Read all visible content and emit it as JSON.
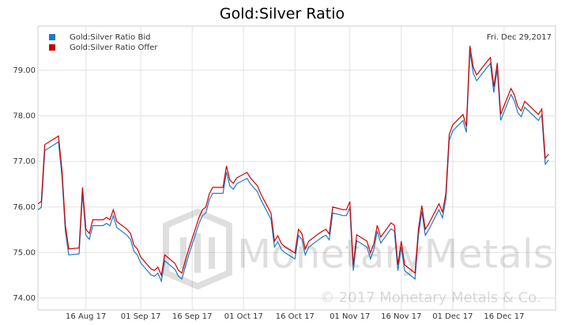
{
  "chart_data": {
    "type": "line",
    "title": "Gold:Silver Ratio",
    "annotation": "Fri. Dec 29,2017",
    "watermark": "MonetaryMetals",
    "copyright": "© 2017 Monetary Metals & Co.",
    "legend": "top-left",
    "grid": true,
    "x": [
      "2017-08-02",
      "2017-08-03",
      "2017-08-04",
      "2017-08-07",
      "2017-08-08",
      "2017-08-09",
      "2017-08-10",
      "2017-08-11",
      "2017-08-14",
      "2017-08-15",
      "2017-08-16",
      "2017-08-17",
      "2017-08-18",
      "2017-08-21",
      "2017-08-22",
      "2017-08-23",
      "2017-08-24",
      "2017-08-25",
      "2017-08-28",
      "2017-08-29",
      "2017-08-30",
      "2017-08-31",
      "2017-09-01",
      "2017-09-04",
      "2017-09-05",
      "2017-09-06",
      "2017-09-07",
      "2017-09-08",
      "2017-09-11",
      "2017-09-12",
      "2017-09-13",
      "2017-09-14",
      "2017-09-15",
      "2017-09-18",
      "2017-09-19",
      "2017-09-20",
      "2017-09-21",
      "2017-09-22",
      "2017-09-25",
      "2017-09-26",
      "2017-09-27",
      "2017-09-28",
      "2017-09-29",
      "2017-10-02",
      "2017-10-03",
      "2017-10-04",
      "2017-10-05",
      "2017-10-06",
      "2017-10-09",
      "2017-10-10",
      "2017-10-11",
      "2017-10-12",
      "2017-10-13",
      "2017-10-16",
      "2017-10-17",
      "2017-10-18",
      "2017-10-19",
      "2017-10-20",
      "2017-10-23",
      "2017-10-24",
      "2017-10-25",
      "2017-10-26",
      "2017-10-27",
      "2017-10-30",
      "2017-10-31",
      "2017-11-01",
      "2017-11-02",
      "2017-11-03",
      "2017-11-06",
      "2017-11-07",
      "2017-11-08",
      "2017-11-09",
      "2017-11-10",
      "2017-11-13",
      "2017-11-14",
      "2017-11-15",
      "2017-11-16",
      "2017-11-17",
      "2017-11-20",
      "2017-11-21",
      "2017-11-22",
      "2017-11-23",
      "2017-11-24",
      "2017-11-27",
      "2017-11-28",
      "2017-11-29",
      "2017-11-30",
      "2017-12-01",
      "2017-12-04",
      "2017-12-05",
      "2017-12-06",
      "2017-12-07",
      "2017-12-08",
      "2017-12-11",
      "2017-12-12",
      "2017-12-13",
      "2017-12-14",
      "2017-12-15",
      "2017-12-18",
      "2017-12-19",
      "2017-12-20",
      "2017-12-21",
      "2017-12-22",
      "2017-12-26",
      "2017-12-27",
      "2017-12-28",
      "2017-12-29"
    ],
    "series": [
      {
        "name": "Gold:Silver Ratio Bid",
        "color": "#1f78c8",
        "values": [
          75.94,
          75.99,
          77.24,
          77.38,
          77.43,
          76.68,
          75.47,
          74.95,
          74.97,
          76.3,
          75.38,
          75.29,
          75.59,
          75.59,
          75.64,
          75.59,
          75.81,
          75.55,
          75.38,
          75.29,
          75.03,
          74.95,
          74.77,
          74.51,
          74.48,
          74.55,
          74.37,
          74.82,
          74.63,
          74.48,
          74.42,
          74.69,
          74.95,
          75.64,
          75.81,
          75.87,
          76.16,
          76.3,
          76.3,
          76.77,
          76.46,
          76.39,
          76.51,
          76.63,
          76.51,
          76.42,
          76.34,
          76.16,
          75.73,
          75.12,
          75.24,
          75.07,
          75.0,
          74.86,
          75.38,
          75.29,
          74.95,
          75.12,
          75.29,
          75.34,
          75.38,
          75.28,
          75.87,
          75.81,
          75.81,
          75.99,
          74.6,
          75.26,
          75.12,
          74.86,
          75.07,
          75.47,
          75.21,
          75.52,
          75.47,
          74.6,
          75.12,
          74.6,
          74.42,
          75.38,
          75.9,
          75.38,
          75.5,
          75.94,
          75.76,
          76.16,
          77.46,
          77.67,
          77.9,
          77.64,
          79.41,
          78.94,
          78.77,
          79.06,
          79.15,
          78.51,
          79.03,
          77.9,
          78.47,
          78.33,
          78.07,
          77.98,
          78.19,
          77.9,
          78.02,
          76.94,
          77.03
        ]
      },
      {
        "name": "Gold:Silver Ratio Offer",
        "color": "#cc0000",
        "values": [
          76.07,
          76.12,
          77.37,
          77.51,
          77.56,
          76.81,
          75.6,
          75.08,
          75.1,
          76.43,
          75.51,
          75.42,
          75.72,
          75.72,
          75.77,
          75.72,
          75.94,
          75.68,
          75.51,
          75.42,
          75.16,
          75.08,
          74.9,
          74.64,
          74.61,
          74.68,
          74.5,
          74.95,
          74.76,
          74.61,
          74.55,
          74.82,
          75.08,
          75.77,
          75.94,
          76.0,
          76.29,
          76.43,
          76.43,
          76.9,
          76.59,
          76.52,
          76.64,
          76.76,
          76.64,
          76.55,
          76.47,
          76.29,
          75.86,
          75.25,
          75.37,
          75.2,
          75.13,
          74.99,
          75.51,
          75.42,
          75.08,
          75.25,
          75.42,
          75.47,
          75.51,
          75.41,
          76.0,
          75.94,
          75.94,
          76.12,
          74.73,
          75.39,
          75.25,
          74.99,
          75.2,
          75.6,
          75.34,
          75.65,
          75.6,
          74.73,
          75.25,
          74.73,
          74.55,
          75.51,
          76.03,
          75.51,
          75.63,
          76.07,
          75.89,
          76.29,
          77.59,
          77.8,
          78.03,
          77.77,
          79.54,
          79.07,
          78.9,
          79.19,
          79.28,
          78.64,
          79.16,
          78.03,
          78.6,
          78.46,
          78.2,
          78.11,
          78.32,
          78.03,
          78.15,
          77.07,
          77.16
        ]
      }
    ],
    "xlim": [
      "2017-08-02",
      "2017-12-31"
    ],
    "xticks": [
      {
        "value": "2017-08-16",
        "label": "16 Aug 17"
      },
      {
        "value": "2017-09-01",
        "label": "01 Sep 17"
      },
      {
        "value": "2017-09-16",
        "label": "16 Sep 17"
      },
      {
        "value": "2017-10-01",
        "label": "01 Oct 17"
      },
      {
        "value": "2017-10-16",
        "label": "16 Oct 17"
      },
      {
        "value": "2017-11-01",
        "label": "01 Nov 17"
      },
      {
        "value": "2017-11-16",
        "label": "16 Nov 17"
      },
      {
        "value": "2017-12-01",
        "label": "01 Dec 17"
      },
      {
        "value": "2017-12-16",
        "label": "16 Dec 17"
      }
    ],
    "ylim": [
      73.74,
      79.97
    ],
    "yticks": [
      {
        "value": 74,
        "label": "74.00"
      },
      {
        "value": 75,
        "label": "75.00"
      },
      {
        "value": 76,
        "label": "76.00"
      },
      {
        "value": 77,
        "label": "77.00"
      },
      {
        "value": 78,
        "label": "78.00"
      },
      {
        "value": 79,
        "label": "79.00"
      }
    ]
  }
}
